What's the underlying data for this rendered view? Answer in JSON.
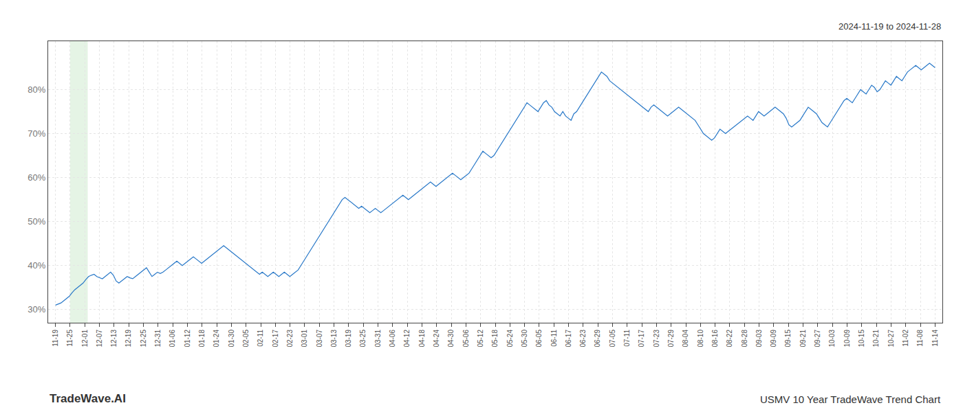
{
  "chart_data": {
    "type": "line",
    "title": "USMV 10 Year TradeWave Trend Chart",
    "subtitle": "2024-11-19 to 2024-11-28",
    "annotations": [
      {
        "text": "TradeWave.AI"
      }
    ],
    "color": "#2878c8",
    "grid": true,
    "legend": "none",
    "highlight": {
      "x_start": 1.0,
      "x_end": 2.2,
      "color": "#d4ecd4"
    },
    "xlim": [
      -0.5,
      60.5
    ],
    "xticks": [
      {
        "value": 0,
        "label": "11-19"
      },
      {
        "value": 1,
        "label": "11-25"
      },
      {
        "value": 2,
        "label": "12-01"
      },
      {
        "value": 3,
        "label": "12-07"
      },
      {
        "value": 4,
        "label": "12-13"
      },
      {
        "value": 5,
        "label": "12-19"
      },
      {
        "value": 6,
        "label": "12-25"
      },
      {
        "value": 7,
        "label": "12-31"
      },
      {
        "value": 8,
        "label": "01-06"
      },
      {
        "value": 9,
        "label": "01-12"
      },
      {
        "value": 10,
        "label": "01-18"
      },
      {
        "value": 11,
        "label": "01-24"
      },
      {
        "value": 12,
        "label": "01-30"
      },
      {
        "value": 13,
        "label": "02-05"
      },
      {
        "value": 14,
        "label": "02-11"
      },
      {
        "value": 15,
        "label": "02-17"
      },
      {
        "value": 16,
        "label": "02-23"
      },
      {
        "value": 17,
        "label": "03-01"
      },
      {
        "value": 18,
        "label": "03-07"
      },
      {
        "value": 19,
        "label": "03-13"
      },
      {
        "value": 20,
        "label": "03-19"
      },
      {
        "value": 21,
        "label": "03-25"
      },
      {
        "value": 22,
        "label": "03-31"
      },
      {
        "value": 23,
        "label": "04-06"
      },
      {
        "value": 24,
        "label": "04-12"
      },
      {
        "value": 25,
        "label": "04-18"
      },
      {
        "value": 26,
        "label": "04-24"
      },
      {
        "value": 27,
        "label": "04-30"
      },
      {
        "value": 28,
        "label": "05-06"
      },
      {
        "value": 29,
        "label": "05-12"
      },
      {
        "value": 30,
        "label": "05-18"
      },
      {
        "value": 31,
        "label": "05-24"
      },
      {
        "value": 32,
        "label": "05-30"
      },
      {
        "value": 33,
        "label": "06-05"
      },
      {
        "value": 34,
        "label": "06-11"
      },
      {
        "value": 35,
        "label": "06-17"
      },
      {
        "value": 36,
        "label": "06-23"
      },
      {
        "value": 37,
        "label": "06-29"
      },
      {
        "value": 38,
        "label": "07-05"
      },
      {
        "value": 39,
        "label": "07-11"
      },
      {
        "value": 40,
        "label": "07-17"
      },
      {
        "value": 41,
        "label": "07-23"
      },
      {
        "value": 42,
        "label": "07-29"
      },
      {
        "value": 43,
        "label": "08-04"
      },
      {
        "value": 44,
        "label": "08-10"
      },
      {
        "value": 45,
        "label": "08-16"
      },
      {
        "value": 46,
        "label": "08-22"
      },
      {
        "value": 47,
        "label": "08-28"
      },
      {
        "value": 48,
        "label": "09-03"
      },
      {
        "value": 49,
        "label": "09-09"
      },
      {
        "value": 50,
        "label": "09-15"
      },
      {
        "value": 51,
        "label": "09-21"
      },
      {
        "value": 52,
        "label": "09-27"
      },
      {
        "value": 53,
        "label": "10-03"
      },
      {
        "value": 54,
        "label": "10-09"
      },
      {
        "value": 55,
        "label": "10-15"
      },
      {
        "value": 56,
        "label": "10-21"
      },
      {
        "value": 57,
        "label": "10-27"
      },
      {
        "value": 58,
        "label": "11-02"
      },
      {
        "value": 59,
        "label": "11-08"
      },
      {
        "value": 60,
        "label": "11-14"
      }
    ],
    "ylim": [
      27,
      91
    ],
    "yticks": [
      {
        "value": 30,
        "label": "30%"
      },
      {
        "value": 40,
        "label": "40%"
      },
      {
        "value": 50,
        "label": "50%"
      },
      {
        "value": 60,
        "label": "60%"
      },
      {
        "value": 70,
        "label": "70%"
      },
      {
        "value": 80,
        "label": "80%"
      }
    ],
    "values": [
      31.0,
      31.2,
      31.5,
      32.0,
      32.5,
      33.0,
      33.8,
      34.5,
      35.0,
      35.5,
      36.0,
      36.8,
      37.5,
      37.8,
      38.0,
      37.5,
      37.2,
      37.0,
      37.5,
      38.0,
      38.5,
      37.8,
      36.5,
      36.0,
      36.5,
      37.0,
      37.5,
      37.2,
      37.0,
      37.5,
      38.0,
      38.5,
      39.0,
      39.5,
      38.5,
      37.5,
      38.0,
      38.5,
      38.2,
      38.5,
      39.0,
      39.5,
      40.0,
      40.5,
      41.0,
      40.5,
      40.0,
      40.5,
      41.0,
      41.5,
      42.0,
      41.5,
      41.0,
      40.5,
      41.0,
      41.5,
      42.0,
      42.5,
      43.0,
      43.5,
      44.0,
      44.5,
      44.0,
      43.5,
      43.0,
      42.5,
      42.0,
      41.5,
      41.0,
      40.5,
      40.0,
      39.5,
      39.0,
      38.5,
      38.0,
      38.5,
      38.0,
      37.5,
      38.0,
      38.5,
      38.0,
      37.5,
      38.0,
      38.5,
      38.0,
      37.5,
      38.0,
      38.5,
      39.0,
      40.0,
      41.0,
      42.0,
      43.0,
      44.0,
      45.0,
      46.0,
      47.0,
      48.0,
      49.0,
      50.0,
      51.0,
      52.0,
      53.0,
      54.0,
      55.0,
      55.5,
      55.0,
      54.5,
      54.0,
      53.5,
      53.0,
      53.5,
      53.0,
      52.5,
      52.0,
      52.5,
      53.0,
      52.5,
      52.0,
      52.5,
      53.0,
      53.5,
      54.0,
      54.5,
      55.0,
      55.5,
      56.0,
      55.5,
      55.0,
      55.5,
      56.0,
      56.5,
      57.0,
      57.5,
      58.0,
      58.5,
      59.0,
      58.5,
      58.0,
      58.5,
      59.0,
      59.5,
      60.0,
      60.5,
      61.0,
      60.5,
      60.0,
      59.5,
      60.0,
      60.5,
      61.0,
      62.0,
      63.0,
      64.0,
      65.0,
      66.0,
      65.5,
      65.0,
      64.5,
      65.0,
      66.0,
      67.0,
      68.0,
      69.0,
      70.0,
      71.0,
      72.0,
      73.0,
      74.0,
      75.0,
      76.0,
      77.0,
      76.5,
      76.0,
      75.5,
      75.0,
      76.0,
      77.0,
      77.5,
      76.5,
      76.0,
      75.0,
      74.5,
      74.0,
      75.0,
      74.0,
      73.5,
      73.0,
      74.5,
      75.0,
      76.0,
      77.0,
      78.0,
      79.0,
      80.0,
      81.0,
      82.0,
      83.0,
      84.0,
      83.5,
      83.0,
      82.0,
      81.5,
      81.0,
      80.5,
      80.0,
      79.5,
      79.0,
      78.5,
      78.0,
      77.5,
      77.0,
      76.5,
      76.0,
      75.5,
      75.0,
      76.0,
      76.5,
      76.0,
      75.5,
      75.0,
      74.5,
      74.0,
      74.5,
      75.0,
      75.5,
      76.0,
      75.5,
      75.0,
      74.5,
      74.0,
      73.5,
      73.0,
      72.0,
      71.0,
      70.0,
      69.5,
      69.0,
      68.5,
      69.0,
      70.0,
      71.0,
      70.5,
      70.0,
      70.5,
      71.0,
      71.5,
      72.0,
      72.5,
      73.0,
      73.5,
      74.0,
      73.5,
      73.0,
      74.0,
      75.0,
      74.5,
      74.0,
      74.5,
      75.0,
      75.5,
      76.0,
      75.5,
      75.0,
      74.5,
      73.5,
      72.0,
      71.5,
      72.0,
      72.5,
      73.0,
      74.0,
      75.0,
      76.0,
      75.5,
      75.0,
      74.5,
      73.5,
      72.5,
      72.0,
      71.5,
      72.5,
      73.5,
      74.5,
      75.5,
      76.5,
      77.5,
      78.0,
      77.5,
      77.0,
      78.0,
      79.0,
      80.0,
      79.5,
      79.0,
      80.0,
      81.0,
      80.5,
      79.5,
      80.0,
      81.0,
      82.0,
      81.5,
      81.0,
      82.0,
      83.0,
      82.5,
      82.0,
      83.0,
      84.0,
      84.5,
      85.0,
      85.5,
      85.0,
      84.5,
      85.0,
      85.5,
      86.0,
      85.5,
      85.0
    ]
  }
}
